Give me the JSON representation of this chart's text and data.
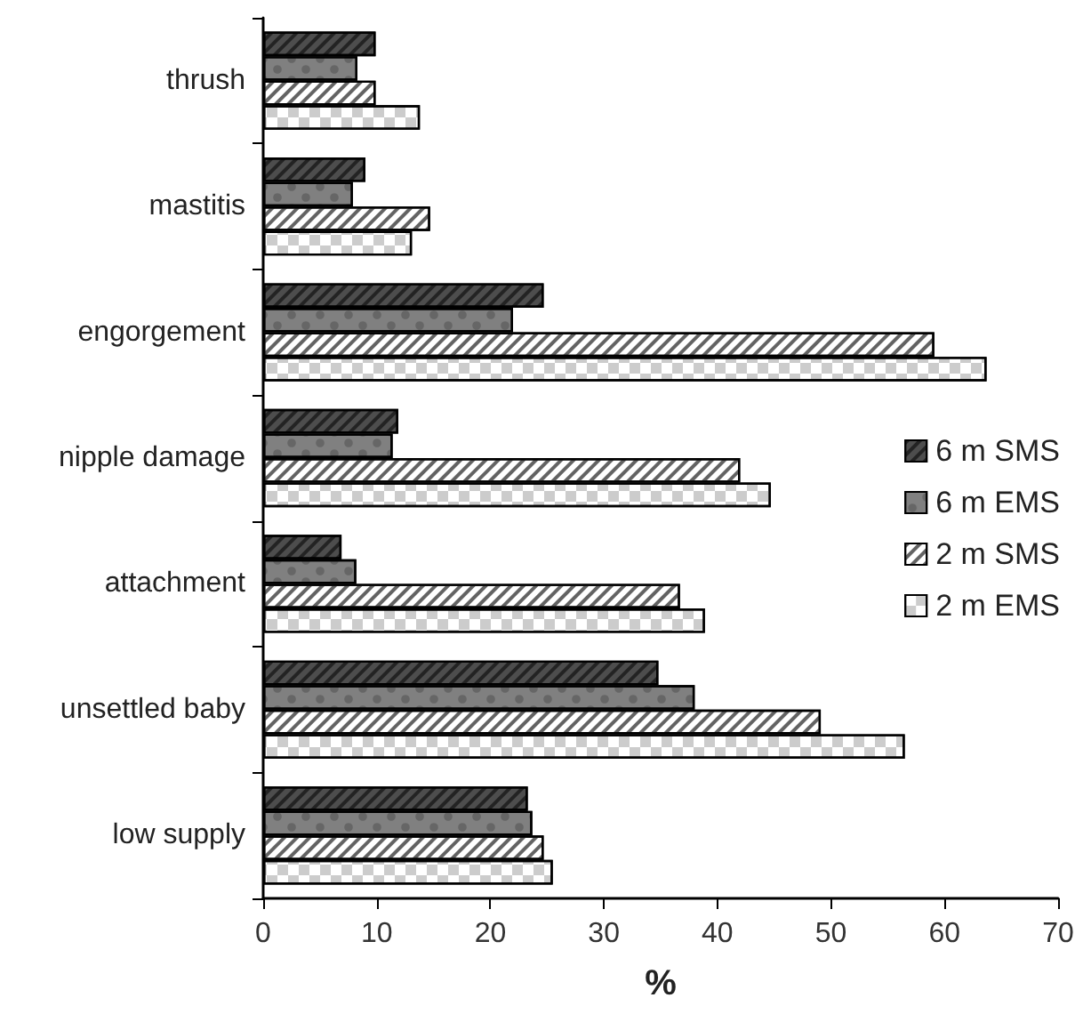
{
  "chart_data": {
    "type": "bar",
    "orientation": "horizontal",
    "xlabel": "%",
    "categories": [
      "thrush",
      "mastitis",
      "engorgement",
      "nipple damage",
      "attachment",
      "unsettled baby",
      "low supply"
    ],
    "series": [
      {
        "name": "6 m SMS",
        "color": "#4d4d4d",
        "values": [
          9.9,
          9.0,
          24.7,
          11.9,
          6.9,
          34.8,
          23.3
        ]
      },
      {
        "name": "6 m EMS",
        "color": "#808080",
        "values": [
          8.3,
          7.9,
          22.0,
          11.4,
          8.2,
          38.0,
          23.7
        ]
      },
      {
        "name": "2 m SMS",
        "color": "#ffffff",
        "values": [
          9.9,
          14.7,
          59.1,
          42.0,
          36.7,
          49.1,
          24.7
        ]
      },
      {
        "name": "2 m EMS",
        "color": "#ffffff",
        "values": [
          13.8,
          13.1,
          63.7,
          44.7,
          38.9,
          56.5,
          25.5
        ]
      }
    ],
    "xlim": [
      0,
      70
    ],
    "xticks": [
      0,
      10,
      20,
      30,
      40,
      50,
      60,
      70
    ],
    "grid": false,
    "legend": "right"
  }
}
